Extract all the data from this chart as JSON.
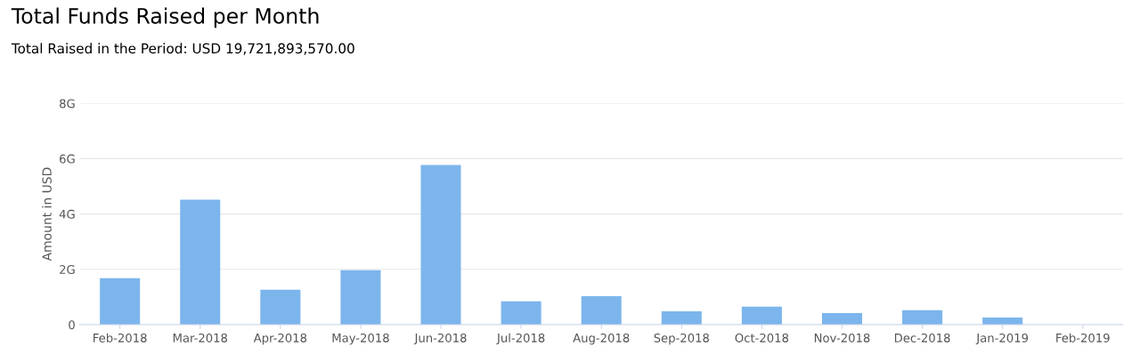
{
  "chart_data": {
    "type": "bar",
    "title": "Total Funds Raised per Month",
    "subtitle": "Total Raised in the Period: USD 19,721,893,570.00",
    "ylabel": "Amount in USD",
    "categories": [
      "Feb-2018",
      "Mar-2018",
      "Apr-2018",
      "May-2018",
      "Jun-2018",
      "Jul-2018",
      "Aug-2018",
      "Sep-2018",
      "Oct-2018",
      "Nov-2018",
      "Dec-2018",
      "Jan-2019",
      "Feb-2019"
    ],
    "values": [
      1.68,
      4.52,
      1.26,
      1.97,
      5.77,
      0.84,
      1.03,
      0.48,
      0.65,
      0.42,
      0.52,
      0.26,
      0
    ],
    "color": "#7cb5ec",
    "ylim": [
      0,
      8
    ],
    "yticks": [
      0,
      {
        "value": 2,
        "label": "2G"
      },
      {
        "value": 4,
        "label": "4G"
      },
      {
        "value": 6,
        "label": "6G"
      },
      {
        "value": 8,
        "label": "8G"
      }
    ],
    "grid": "y"
  }
}
